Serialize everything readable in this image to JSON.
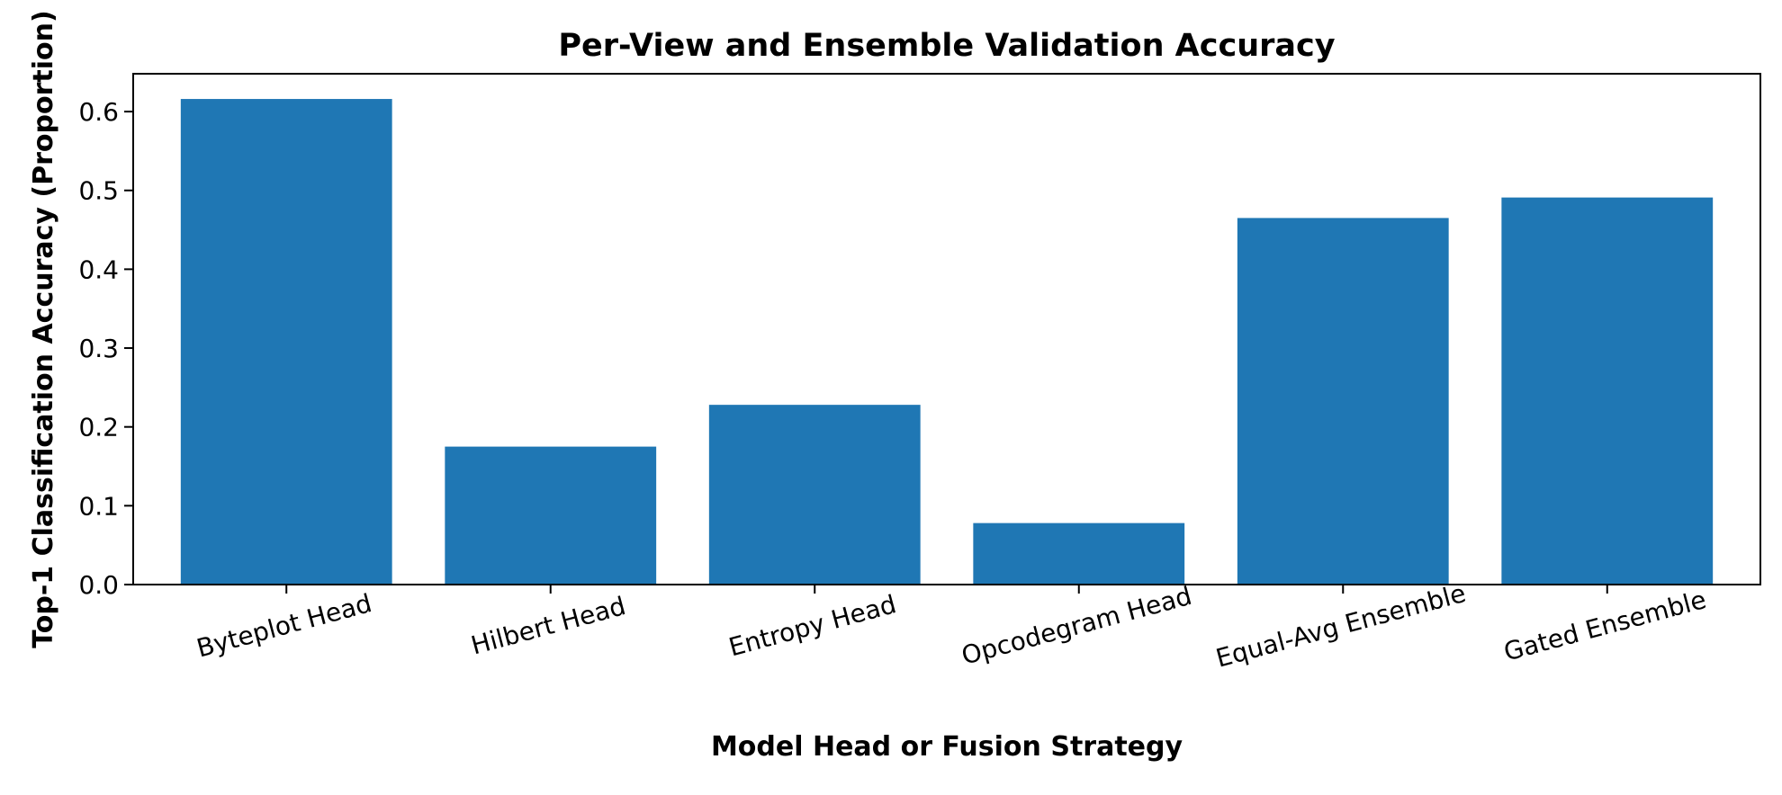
{
  "chart_data": {
    "type": "bar",
    "title": "Per-View and Ensemble Validation Accuracy",
    "xlabel": "Model Head or Fusion Strategy",
    "ylabel": "Top-1 Classification Accuracy (Proportion)",
    "categories": [
      "Byteplot Head",
      "Hilbert Head",
      "Entropy Head",
      "Opcodegram Head",
      "Equal-Avg Ensemble",
      "Gated Ensemble"
    ],
    "values": [
      0.616,
      0.175,
      0.228,
      0.078,
      0.465,
      0.491
    ],
    "ylim": [
      0,
      0.648
    ],
    "yticks": [
      "0.0",
      "0.1",
      "0.2",
      "0.3",
      "0.4",
      "0.5",
      "0.6"
    ],
    "bar_color": "#1f77b4",
    "grid": false,
    "legend": "none"
  }
}
